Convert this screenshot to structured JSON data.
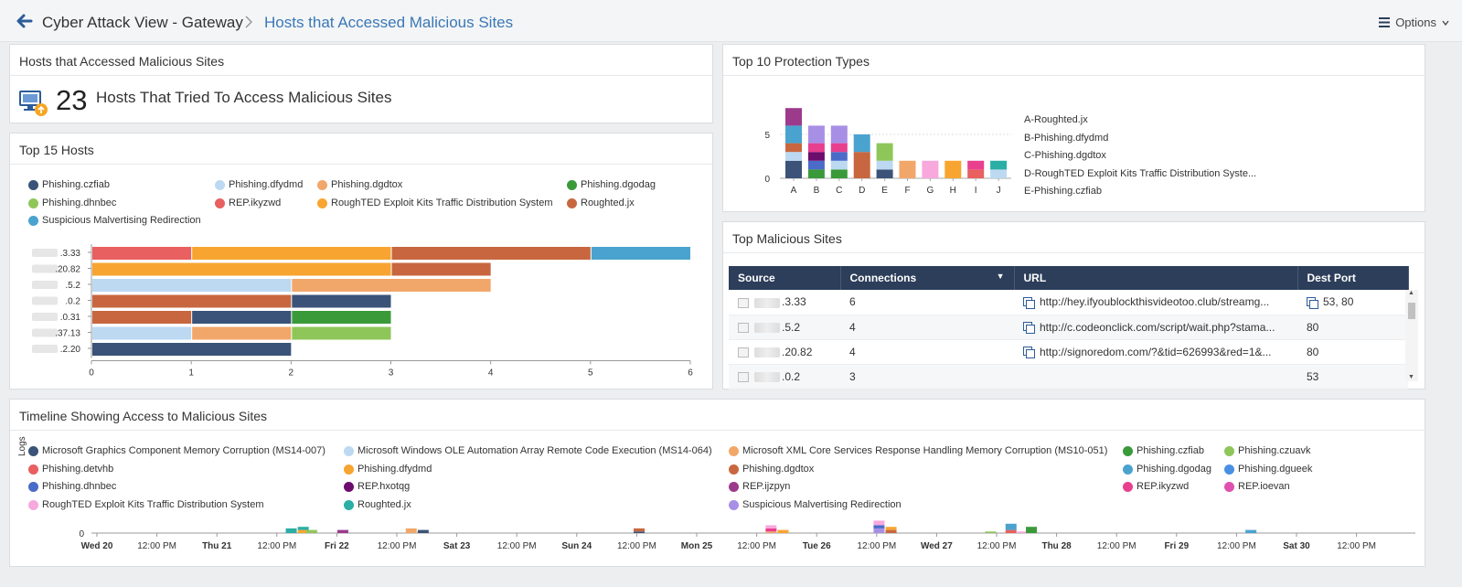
{
  "header": {
    "crumb1": "Cyber Attack View - Gateway",
    "crumb2": "Hosts that Accessed Malicious Sites",
    "options_label": "Options"
  },
  "summary": {
    "title": "Hosts that Accessed Malicious Sites",
    "count": "23",
    "text": "Hosts That Tried To Access Malicious Sites"
  },
  "top_hosts": {
    "title": "Top 15 Hosts",
    "legend": [
      {
        "label": "Phishing.czfiab",
        "color": "#3b5378"
      },
      {
        "label": "Phishing.dfydmd",
        "color": "#bcd9f1"
      },
      {
        "label": "Phishing.dgdtox",
        "color": "#f2a76a"
      },
      {
        "label": "Phishing.dgodag",
        "color": "#3a9a3a"
      },
      {
        "label": "Phishing.dhnbec",
        "color": "#8fc65a"
      },
      {
        "label": "REP.ikyzwd",
        "color": "#e8605f"
      },
      {
        "label": "RoughTED Exploit Kits Traffic Distribution System",
        "color": "#f7a530"
      },
      {
        "label": "Roughted.jx",
        "color": "#c8673f"
      },
      {
        "label": "Suspicious Malvertising Redirection",
        "color": "#4aa3cf"
      }
    ]
  },
  "chart_data": [
    {
      "type": "bar",
      "orientation": "horizontal",
      "stacked": true,
      "categories": [
        ".3.33",
        ".20.82",
        ".5.2",
        ".0.2",
        ".0.31",
        ".37.13",
        ".2.20"
      ],
      "xlim": [
        0,
        6
      ],
      "xticks": [
        "0",
        "1",
        "2",
        "3",
        "4",
        "5",
        "6"
      ],
      "series": [
        {
          "name": "REP.ikyzwd",
          "color": "#e8605f",
          "values": [
            1,
            0,
            0,
            0,
            0,
            0,
            0
          ]
        },
        {
          "name": "RoughTED Exploit Kits Traffic Distribution System",
          "color": "#f7a530",
          "values": [
            2,
            3,
            0,
            0,
            0,
            0,
            0
          ]
        },
        {
          "name": "Roughted.jx",
          "color": "#c8673f",
          "values": [
            2,
            1,
            0,
            2,
            1,
            0,
            0
          ]
        },
        {
          "name": "Suspicious Malvertising Redirection",
          "color": "#4aa3cf",
          "values": [
            1,
            0,
            0,
            0,
            0,
            0,
            0
          ]
        },
        {
          "name": "Phishing.dfydmd",
          "color": "#bcd9f1",
          "values": [
            0,
            0,
            2,
            0,
            0,
            1,
            0
          ]
        },
        {
          "name": "Phishing.dgdtox",
          "color": "#f2a76a",
          "values": [
            0,
            0,
            2,
            0,
            0,
            1,
            0
          ]
        },
        {
          "name": "Phishing.czfiab",
          "color": "#3b5378",
          "values": [
            0,
            0,
            0,
            1,
            1,
            0,
            2
          ]
        },
        {
          "name": "Phishing.dgodag",
          "color": "#3a9a3a",
          "values": [
            0,
            0,
            0,
            0,
            1,
            0,
            0
          ]
        },
        {
          "name": "Phishing.dhnbec",
          "color": "#8fc65a",
          "values": [
            0,
            0,
            0,
            0,
            0,
            1,
            0
          ]
        }
      ]
    },
    {
      "type": "bar",
      "stacked": true,
      "categories": [
        "A",
        "B",
        "C",
        "D",
        "E",
        "F",
        "G",
        "H",
        "I",
        "J"
      ],
      "ylim": [
        0,
        8
      ],
      "yticks": [
        "0",
        "5"
      ],
      "stacks": [
        [
          [
            "#3b5378",
            2
          ],
          [
            "#bcd9f1",
            1
          ],
          [
            "#c8673f",
            1
          ],
          [
            "#4aa3cf",
            2
          ],
          [
            "#9c3a8c",
            2
          ]
        ],
        [
          [
            "#3a9a3a",
            1
          ],
          [
            "#4a6bc8",
            1
          ],
          [
            "#6d0d6d",
            1
          ],
          [
            "#e8408f",
            1
          ],
          [
            "#a88fe6",
            2
          ]
        ],
        [
          [
            "#3a9a3a",
            1
          ],
          [
            "#bcd9f1",
            1
          ],
          [
            "#4a6bc8",
            1
          ],
          [
            "#e8408f",
            1
          ],
          [
            "#a88fe6",
            2
          ]
        ],
        [
          [
            "#c8673f",
            3
          ],
          [
            "#4aa3cf",
            2
          ]
        ],
        [
          [
            "#3b5378",
            1
          ],
          [
            "#bcd9f1",
            1
          ],
          [
            "#8fc65a",
            2
          ]
        ],
        [
          [
            "#f2a76a",
            2
          ]
        ],
        [
          [
            "#f7a8dd",
            2
          ]
        ],
        [
          [
            "#f7a530",
            2
          ]
        ],
        [
          [
            "#e8605f",
            1
          ],
          [
            "#e8408f",
            1
          ]
        ],
        [
          [
            "#bcd9f1",
            1
          ],
          [
            "#2aaea5",
            1
          ]
        ]
      ]
    },
    {
      "type": "bar",
      "title": "Timeline Showing Access to Malicious Sites",
      "ylabel": "Logs",
      "yticks": [
        "0"
      ],
      "xticks": [
        "Wed 20",
        "12:00 PM",
        "Thu 21",
        "12:00 PM",
        "Fri 22",
        "12:00 PM",
        "Sat 23",
        "12:00 PM",
        "Sun 24",
        "12:00 PM",
        "Mon 25",
        "12:00 PM",
        "Tue 26",
        "12:00 PM",
        "Wed 27",
        "12:00 PM",
        "Thu 28",
        "12:00 PM",
        "Fri 29",
        "12:00 PM",
        "Sat 30",
        "12:00 PM"
      ],
      "xticks_bold": [
        true,
        false,
        true,
        false,
        true,
        false,
        true,
        false,
        true,
        false,
        true,
        false,
        true,
        false,
        true,
        false,
        true,
        false,
        true,
        false,
        true,
        false
      ],
      "events": [
        {
          "t": 1.62,
          "color": "#2aaea5",
          "h": 3
        },
        {
          "t": 1.72,
          "color": "#f7a530",
          "h": 2
        },
        {
          "t": 1.72,
          "color": "#2aaea5",
          "h": 2
        },
        {
          "t": 1.79,
          "color": "#8fc65a",
          "h": 2
        },
        {
          "t": 2.05,
          "color": "#9c3a8c",
          "h": 2
        },
        {
          "t": 2.62,
          "color": "#f2a76a",
          "h": 3
        },
        {
          "t": 2.72,
          "color": "#3b5378",
          "h": 2
        },
        {
          "t": 4.52,
          "color": "#3b5378",
          "h": 1
        },
        {
          "t": 4.52,
          "color": "#c8673f",
          "h": 2
        },
        {
          "t": 5.62,
          "color": "#f2a76a",
          "h": 1
        },
        {
          "t": 5.62,
          "color": "#e8408f",
          "h": 2
        },
        {
          "t": 5.62,
          "color": "#f7a8dd",
          "h": 2
        },
        {
          "t": 5.72,
          "color": "#f7a530",
          "h": 2
        },
        {
          "t": 6.52,
          "color": "#a88fe6",
          "h": 3
        },
        {
          "t": 6.52,
          "color": "#4a6bc8",
          "h": 2
        },
        {
          "t": 6.52,
          "color": "#f7a8dd",
          "h": 3
        },
        {
          "t": 6.62,
          "color": "#c8673f",
          "h": 2
        },
        {
          "t": 6.62,
          "color": "#f7a530",
          "h": 2
        },
        {
          "t": 7.45,
          "color": "#8fc65a",
          "h": 1
        },
        {
          "t": 7.62,
          "color": "#e8605f",
          "h": 2
        },
        {
          "t": 7.62,
          "color": "#4aa3cf",
          "h": 4
        },
        {
          "t": 7.72,
          "color": "#f7a8dd",
          "h": 1
        },
        {
          "t": 7.79,
          "color": "#3a9a3a",
          "h": 4
        },
        {
          "t": 9.62,
          "color": "#4aa3cf",
          "h": 2
        }
      ]
    }
  ],
  "protection": {
    "title": "Top 10 Protection Types",
    "legend": [
      "A-Roughted.jx",
      "B-Phishing.dfydmd",
      "C-Phishing.dgdtox",
      "D-RoughTED Exploit Kits Traffic Distribution Syste...",
      "E-Phishing.czfiab"
    ]
  },
  "sites": {
    "title": "Top Malicious Sites",
    "columns": [
      "Source",
      "Connections",
      "URL",
      "Dest Port"
    ],
    "rows": [
      {
        "source": ".3.33",
        "connections": "6",
        "url": "http://hey.ifyoublockthisvideotoo.club/streamg...",
        "port": "53, 80",
        "port_icon": true,
        "url_icon": true
      },
      {
        "source": ".5.2",
        "connections": "4",
        "url": "http://c.codeonclick.com/script/wait.php?stama...",
        "port": "80",
        "port_icon": false,
        "url_icon": true
      },
      {
        "source": ".20.82",
        "connections": "4",
        "url": "http://signoredom.com/?&tid=626993&red=1&...",
        "port": "80",
        "port_icon": false,
        "url_icon": true
      },
      {
        "source": ".0.2",
        "connections": "3",
        "url": "",
        "port": "53",
        "port_icon": false,
        "url_icon": false
      }
    ]
  },
  "timeline": {
    "title": "Timeline Showing Access to Malicious Sites",
    "ylabel": "Logs",
    "legend": [
      {
        "label": "Microsoft Graphics Component Memory Corruption (MS14-007)",
        "color": "#3b5378"
      },
      {
        "label": "Microsoft Windows OLE Automation Array Remote Code Execution (MS14-064)",
        "color": "#bcd9f1"
      },
      {
        "label": "Microsoft XML Core Services Response Handling Memory Corruption (MS10-051)",
        "color": "#f2a76a"
      },
      {
        "label": "Phishing.czfiab",
        "color": "#3a9a3a"
      },
      {
        "label": "Phishing.czuavk",
        "color": "#8fc65a"
      },
      {
        "label": "Phishing.detvhb",
        "color": "#e8605f"
      },
      {
        "label": "Phishing.dfydmd",
        "color": "#f7a530"
      },
      {
        "label": "Phishing.dgdtox",
        "color": "#c8673f"
      },
      {
        "label": "Phishing.dgodag",
        "color": "#4aa3cf"
      },
      {
        "label": "Phishing.dgueek",
        "color": "#4a90e2"
      },
      {
        "label": "Phishing.dhnbec",
        "color": "#4a6bc8"
      },
      {
        "label": "REP.hxotqg",
        "color": "#6d0d6d"
      },
      {
        "label": "REP.ijzpyn",
        "color": "#9c3a8c"
      },
      {
        "label": "REP.ikyzwd",
        "color": "#e8408f"
      },
      {
        "label": "REP.ioevan",
        "color": "#e050b0"
      },
      {
        "label": "RoughTED Exploit Kits Traffic Distribution System",
        "color": "#f7a8dd"
      },
      {
        "label": "Roughted.jx",
        "color": "#2aaea5"
      },
      {
        "label": "Suspicious Malvertising Redirection",
        "color": "#a88fe6"
      }
    ]
  }
}
